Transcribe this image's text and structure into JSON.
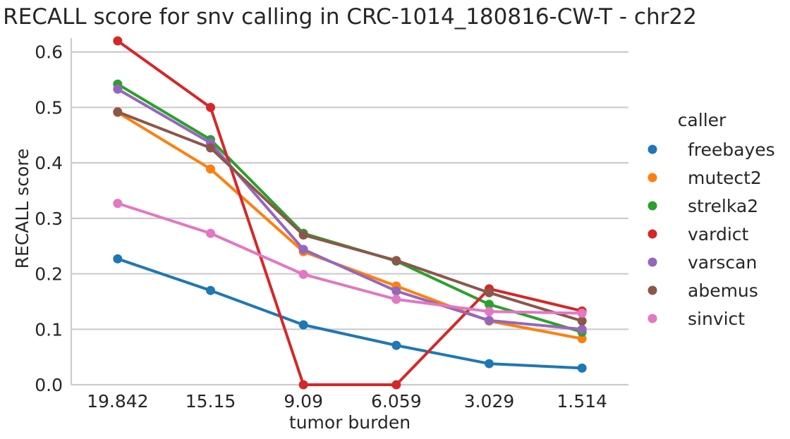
{
  "chart_data": {
    "type": "line",
    "title": "RECALL score for snv calling in CRC-1014_180816-CW-T - chr22",
    "xlabel": "tumor burden",
    "ylabel": "RECALL score",
    "categories": [
      "19.842",
      "15.15",
      "9.09",
      "6.059",
      "3.029",
      "1.514"
    ],
    "ylim": [
      0,
      0.62
    ],
    "yticks": [
      "0.0",
      "0.1",
      "0.2",
      "0.3",
      "0.4",
      "0.5",
      "0.6"
    ],
    "grid": "horizontal",
    "legend": {
      "title": "caller",
      "placement": "right"
    },
    "series": [
      {
        "name": "freebayes",
        "color": "#1f77b4",
        "values": [
          0.227,
          0.17,
          0.108,
          0.071,
          0.038,
          0.03
        ]
      },
      {
        "name": "mutect2",
        "color": "#ff7f0e",
        "values": [
          0.491,
          0.389,
          0.24,
          0.178,
          0.115,
          0.083
        ]
      },
      {
        "name": "strelka2",
        "color": "#2ca02c",
        "values": [
          0.542,
          0.442,
          0.273,
          0.223,
          0.145,
          0.095
        ]
      },
      {
        "name": "vardict",
        "color": "#d62728",
        "values": [
          0.62,
          0.5,
          0.0,
          0.0,
          0.173,
          0.133
        ]
      },
      {
        "name": "varscan",
        "color": "#9467bd",
        "values": [
          0.533,
          0.436,
          0.244,
          0.169,
          0.116,
          0.1
        ]
      },
      {
        "name": "abemus",
        "color": "#8c564b",
        "values": [
          0.492,
          0.427,
          0.27,
          0.224,
          0.166,
          0.115
        ]
      },
      {
        "name": "sinvict",
        "color": "#e377c2",
        "values": [
          0.327,
          0.273,
          0.199,
          0.154,
          0.132,
          0.129
        ]
      }
    ]
  }
}
